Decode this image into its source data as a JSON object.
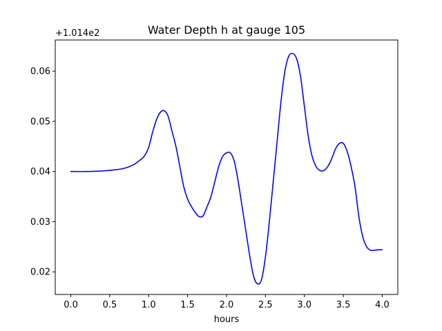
{
  "chart_data": {
    "type": "line",
    "title": "Water Depth h at gauge 105",
    "xlabel": "hours",
    "ylabel": "",
    "offset_label": "+1.014e2",
    "xlim": [
      -0.2,
      4.2
    ],
    "ylim": [
      0.0155,
      0.0662
    ],
    "x_ticks": [
      0.0,
      0.5,
      1.0,
      1.5,
      2.0,
      2.5,
      3.0,
      3.5,
      4.0
    ],
    "x_tick_labels": [
      "0.0",
      "0.5",
      "1.0",
      "1.5",
      "2.0",
      "2.5",
      "3.0",
      "3.5",
      "4.0"
    ],
    "y_ticks": [
      0.02,
      0.03,
      0.04,
      0.05,
      0.06
    ],
    "y_tick_labels": [
      "0.02",
      "0.03",
      "0.04",
      "0.05",
      "0.06"
    ],
    "grid": false,
    "legend": "none",
    "series": [
      {
        "color": "#0000ff",
        "x": [
          0.0,
          0.2,
          0.4,
          0.6,
          0.7,
          0.8,
          0.9,
          0.95,
          1.0,
          1.05,
          1.1,
          1.15,
          1.2,
          1.25,
          1.3,
          1.35,
          1.4,
          1.45,
          1.5,
          1.55,
          1.6,
          1.65,
          1.7,
          1.75,
          1.8,
          1.85,
          1.9,
          1.95,
          2.0,
          2.05,
          2.1,
          2.15,
          2.2,
          2.25,
          2.3,
          2.35,
          2.4,
          2.45,
          2.5,
          2.55,
          2.6,
          2.65,
          2.7,
          2.75,
          2.8,
          2.85,
          2.9,
          2.95,
          3.0,
          3.05,
          3.1,
          3.15,
          3.2,
          3.25,
          3.3,
          3.35,
          3.4,
          3.45,
          3.5,
          3.55,
          3.6,
          3.65,
          3.7,
          3.75,
          3.8,
          3.85,
          3.9,
          3.95,
          4.0
        ],
        "y": [
          0.04,
          0.04,
          0.0401,
          0.0404,
          0.0407,
          0.0413,
          0.0424,
          0.0432,
          0.0448,
          0.0478,
          0.0503,
          0.0518,
          0.0521,
          0.051,
          0.048,
          0.045,
          0.041,
          0.037,
          0.0345,
          0.033,
          0.0318,
          0.031,
          0.0312,
          0.033,
          0.035,
          0.038,
          0.041,
          0.043,
          0.0437,
          0.0437,
          0.042,
          0.038,
          0.033,
          0.028,
          0.023,
          0.019,
          0.0176,
          0.0185,
          0.023,
          0.03,
          0.038,
          0.046,
          0.054,
          0.06,
          0.063,
          0.0635,
          0.0625,
          0.059,
          0.053,
          0.047,
          0.043,
          0.041,
          0.0402,
          0.0402,
          0.041,
          0.0425,
          0.0445,
          0.0456,
          0.0456,
          0.044,
          0.041,
          0.037,
          0.031,
          0.027,
          0.025,
          0.0243,
          0.0243,
          0.0244,
          0.0244
        ]
      }
    ]
  }
}
